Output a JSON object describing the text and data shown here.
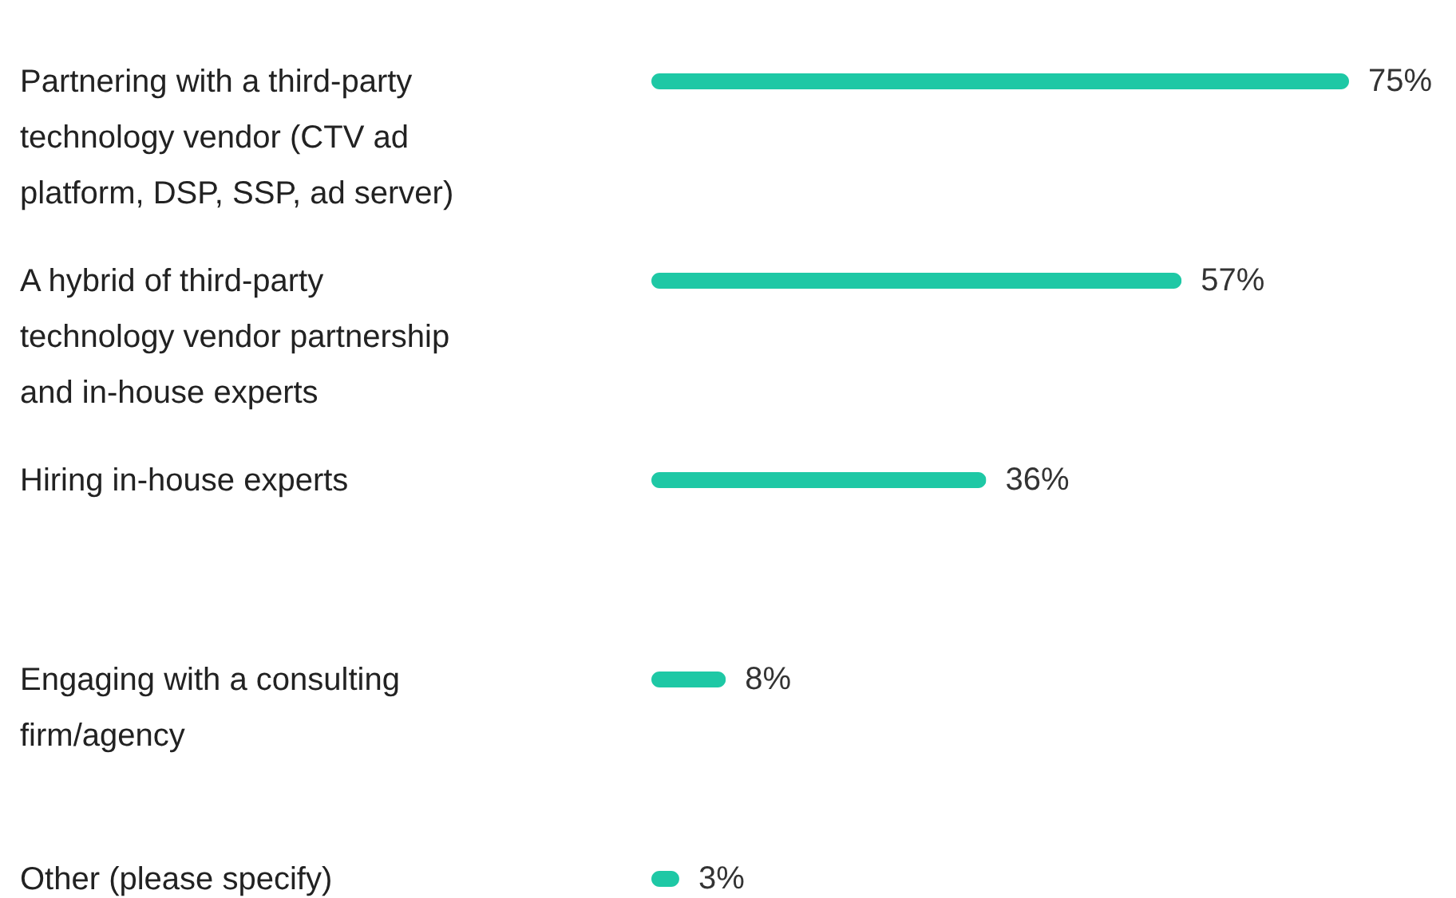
{
  "chart_data": {
    "type": "bar",
    "orientation": "horizontal",
    "categories": [
      "Partnering with a third-party technology vendor (CTV ad platform, DSP, SSP, ad server)",
      "A hybrid of third-party technology vendor partnership and in-house experts",
      "Hiring in-house experts",
      "Engaging with a consulting firm/agency",
      "Other (please specify)"
    ],
    "values": [
      75,
      57,
      36,
      8,
      3
    ],
    "value_labels": [
      "75%",
      "57%",
      "36%",
      "8%",
      "3%"
    ],
    "color": "#1ec8a5"
  }
}
